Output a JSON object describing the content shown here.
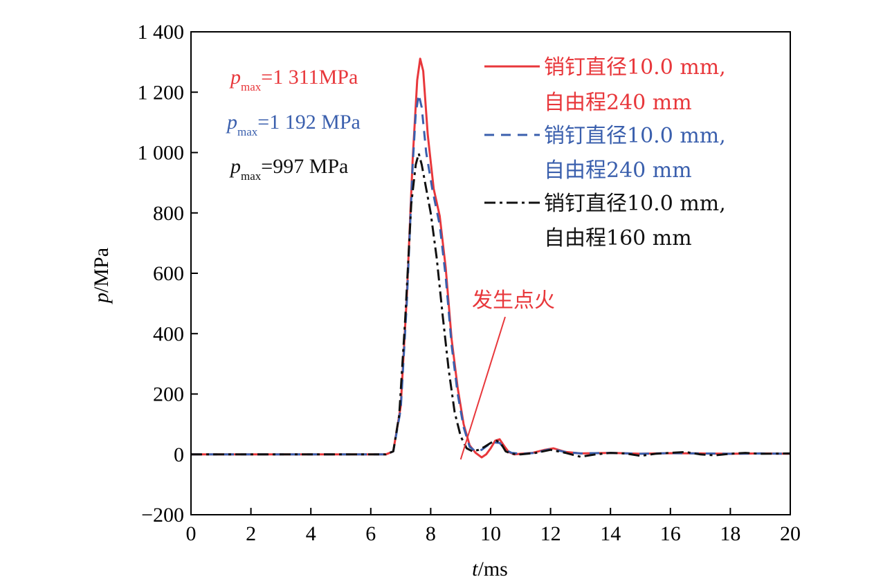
{
  "chart_data": {
    "type": "line",
    "xlabel_var": "t",
    "xlabel_unit": "/ms",
    "ylabel_var": "p",
    "ylabel_unit": "/MPa",
    "xlim": [
      0,
      20
    ],
    "ylim": [
      -200,
      1400
    ],
    "xticks": [
      0,
      2,
      4,
      6,
      8,
      10,
      12,
      14,
      16,
      18,
      20
    ],
    "yticks": [
      -200,
      0,
      200,
      400,
      600,
      800,
      1000,
      1200,
      1400
    ],
    "ytick_labels": [
      "−200",
      "0",
      "200",
      "400",
      "600",
      "800",
      "1 000",
      "1 200",
      "1 400"
    ],
    "grid": false,
    "legend_position": "top-right",
    "series": [
      {
        "legend_line1": "销钉直径10.0 mm,",
        "legend_line2": "自由程240 mm",
        "color": "#e8373b",
        "dash": "solid",
        "x": [
          0,
          6.5,
          6.75,
          7.0,
          7.2,
          7.4,
          7.55,
          7.65,
          7.75,
          7.9,
          8.1,
          8.3,
          8.5,
          8.7,
          8.9,
          9.1,
          9.3,
          9.5,
          9.7,
          9.85,
          10.0,
          10.15,
          10.3,
          10.45,
          10.6,
          10.8,
          11.0,
          11.4,
          11.8,
          12.1,
          12.5,
          13.0,
          14.0,
          15.0,
          16.0,
          17.0,
          18.0,
          19.0,
          20.0
        ],
        "y": [
          0,
          0,
          10,
          160,
          520,
          980,
          1240,
          1311,
          1270,
          1060,
          880,
          790,
          620,
          380,
          220,
          100,
          30,
          5,
          -10,
          0,
          20,
          45,
          50,
          28,
          8,
          0,
          2,
          5,
          15,
          20,
          8,
          3,
          5,
          2,
          4,
          3,
          2,
          3,
          2
        ]
      },
      {
        "legend_line1": "销钉直径10.0 mm,",
        "legend_line2": "自由程240 mm",
        "color": "#3a5fad",
        "dash": "dashed",
        "x": [
          0,
          6.5,
          6.75,
          7.0,
          7.2,
          7.4,
          7.5,
          7.6,
          7.7,
          7.85,
          8.05,
          8.3,
          8.5,
          8.7,
          8.9,
          9.1,
          9.3,
          9.5,
          9.7,
          9.9,
          10.1,
          10.3,
          10.5,
          10.7,
          11.0,
          11.5,
          12.0,
          12.5,
          13.0,
          14.0,
          15.0,
          16.0,
          17.0,
          18.0,
          19.0,
          20.0
        ],
        "y": [
          0,
          0,
          10,
          150,
          500,
          960,
          1130,
          1192,
          1150,
          1000,
          880,
          760,
          590,
          360,
          200,
          90,
          25,
          10,
          15,
          30,
          40,
          38,
          15,
          5,
          2,
          5,
          18,
          8,
          3,
          5,
          2,
          4,
          3,
          2,
          3,
          2
        ]
      },
      {
        "legend_line1": "销钉直径10.0 mm,",
        "legend_line2": "自由程160 mm",
        "color": "#111111",
        "dash": "dashdot",
        "x": [
          0,
          6.5,
          6.75,
          6.95,
          7.15,
          7.35,
          7.5,
          7.6,
          7.7,
          7.85,
          8.0,
          8.2,
          8.4,
          8.6,
          8.8,
          9.0,
          9.2,
          9.4,
          9.6,
          9.8,
          10.0,
          10.2,
          10.35,
          10.5,
          10.7,
          11.0,
          11.5,
          12.0,
          12.5,
          13.0,
          13.5,
          14.0,
          14.5,
          15.0,
          15.5,
          16.0,
          16.5,
          17.0,
          17.5,
          18.0,
          18.5,
          19.0,
          20.0
        ],
        "y": [
          0,
          0,
          10,
          130,
          450,
          830,
          960,
          997,
          960,
          880,
          800,
          650,
          460,
          280,
          140,
          60,
          20,
          10,
          15,
          25,
          38,
          45,
          35,
          10,
          2,
          0,
          5,
          15,
          5,
          -8,
          0,
          5,
          3,
          -5,
          2,
          5,
          8,
          0,
          -3,
          2,
          5,
          2,
          3
        ]
      }
    ],
    "annotations": [
      {
        "var": "p",
        "sub": "max",
        "value": "=1 311MPa",
        "color": "#e8373b"
      },
      {
        "var": "p",
        "sub": "max",
        "value": "=1 192 MPa",
        "color": "#3a5fad"
      },
      {
        "var": "p",
        "sub": "max",
        "value": "=997 MPa",
        "color": "#111111"
      }
    ],
    "callout": {
      "text": "发生点火",
      "color": "#e8373b",
      "target_x": 9.0,
      "target_y": 350
    }
  }
}
